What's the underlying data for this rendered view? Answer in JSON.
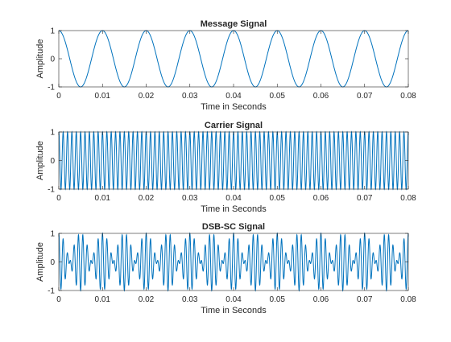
{
  "chart_data": [
    {
      "type": "line",
      "title": "Message Signal",
      "xlabel": "Time in Seconds",
      "ylabel": "Amplitude",
      "xlim": [
        0,
        0.08
      ],
      "ylim": [
        -1,
        1
      ],
      "xticks": [
        0,
        0.01,
        0.02,
        0.03,
        0.04,
        0.05,
        0.06,
        0.07,
        0.08
      ],
      "xtick_labels": [
        "0",
        "0.01",
        "0.02",
        "0.03",
        "0.04",
        "0.05",
        "0.06",
        "0.07",
        "0.08"
      ],
      "yticks": [
        -1,
        0,
        1
      ],
      "ytick_labels": [
        "-1",
        "0",
        "1"
      ],
      "grid": false,
      "line_color": "#0072BD",
      "series": [
        {
          "signal": "cosine",
          "amplitude": 1,
          "frequency_hz": 100,
          "phase": 0
        }
      ]
    },
    {
      "type": "line",
      "title": "Carrier Signal",
      "xlabel": "Time in Seconds",
      "ylabel": "Amplitude",
      "xlim": [
        0,
        0.08
      ],
      "ylim": [
        -1,
        1
      ],
      "xticks": [
        0,
        0.01,
        0.02,
        0.03,
        0.04,
        0.05,
        0.06,
        0.07,
        0.08
      ],
      "xtick_labels": [
        "0",
        "0.01",
        "0.02",
        "0.03",
        "0.04",
        "0.05",
        "0.06",
        "0.07",
        "0.08"
      ],
      "yticks": [
        -1,
        0,
        1
      ],
      "ytick_labels": [
        "-1",
        "0",
        "1"
      ],
      "grid": false,
      "line_color": "#0072BD",
      "series": [
        {
          "signal": "cosine",
          "amplitude": 1,
          "frequency_hz": 1000,
          "phase": 0
        }
      ]
    },
    {
      "type": "line",
      "title": "DSB-SC Signal",
      "xlabel": "Time in Seconds",
      "ylabel": "Amplitude",
      "xlim": [
        0,
        0.08
      ],
      "ylim": [
        -1,
        1
      ],
      "xticks": [
        0,
        0.01,
        0.02,
        0.03,
        0.04,
        0.05,
        0.06,
        0.07,
        0.08
      ],
      "xtick_labels": [
        "0",
        "0.01",
        "0.02",
        "0.03",
        "0.04",
        "0.05",
        "0.06",
        "0.07",
        "0.08"
      ],
      "yticks": [
        -1,
        0,
        1
      ],
      "ytick_labels": [
        "-1",
        "0",
        "1"
      ],
      "grid": false,
      "line_color": "#0072BD",
      "series": [
        {
          "signal": "product",
          "amplitude": 1,
          "message_frequency_hz": 100,
          "carrier_frequency_hz": 1000
        }
      ]
    }
  ]
}
